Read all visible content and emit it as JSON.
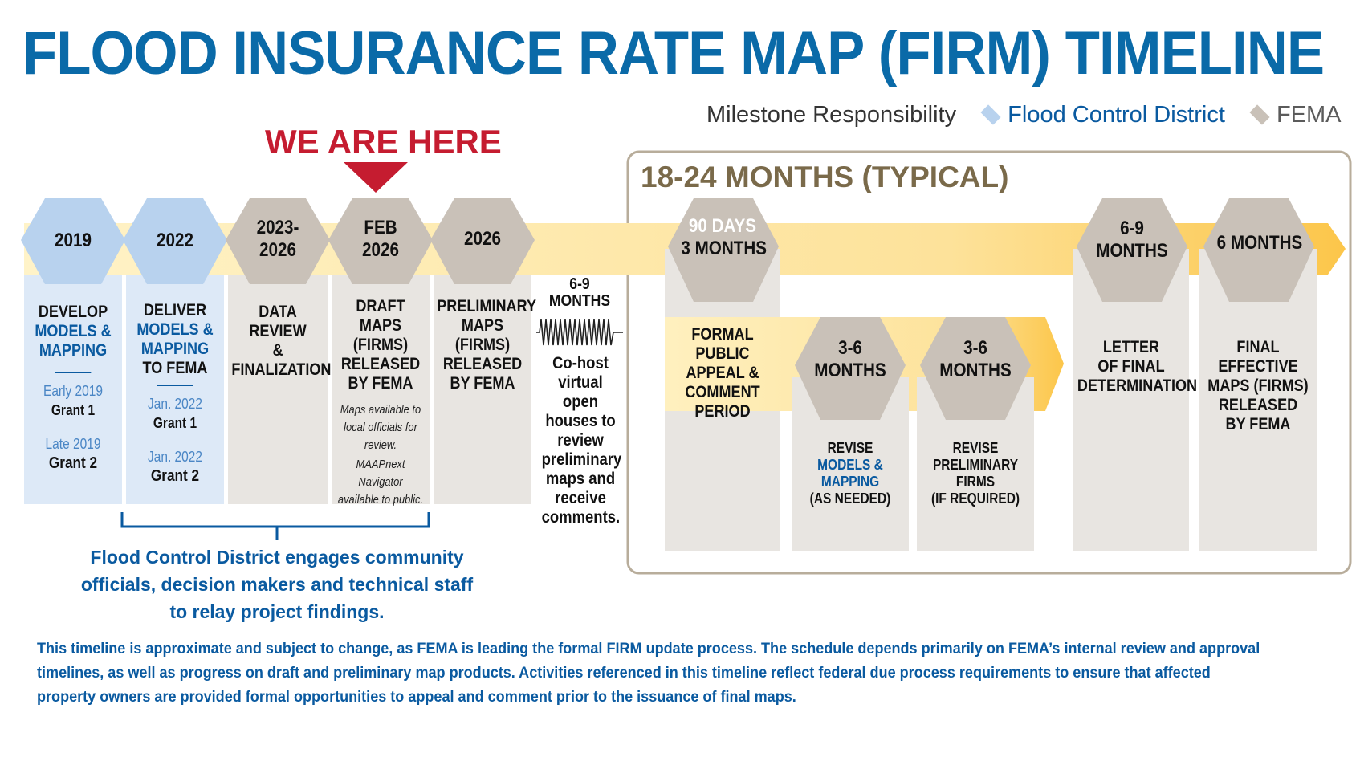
{
  "title": "FLOOD INSURANCE RATE MAP (FIRM) TIMELINE",
  "legend": {
    "label": "Milestone Responsibility",
    "items": [
      {
        "label": "Flood Control District",
        "color": "#b8d2ee"
      },
      {
        "label": "FEMA",
        "color": "#c9c1b8"
      }
    ]
  },
  "we_are_here": "WE ARE HERE",
  "colors": {
    "blue": "#0a6aa8",
    "red": "#c51c30",
    "fcd_card": "#dde9f7",
    "fema_card": "#e8e5e1",
    "band": "#fde3a0",
    "period_border": "#b8ad9b"
  },
  "milestones": [
    {
      "date": "2019",
      "line1": "DEVELOP",
      "line2": "MODELS &",
      "line3": "MAPPING",
      "sub1": "Early 2019",
      "sub1b": "Grant 1",
      "sub2": "Late 2019",
      "sub2b": "Grant 2"
    },
    {
      "date": "2022",
      "line1": "DELIVER",
      "line2": "MODELS &",
      "line3": "MAPPING",
      "line4": "TO FEMA",
      "sub1": "Jan. 2022",
      "sub1b": "Grant 1",
      "sub2": "Jan. 2022",
      "sub2b": "Grant 2"
    },
    {
      "date_a": "2023-",
      "date_b": "2026",
      "line1": "DATA REVIEW",
      "line2": "&",
      "line3": "FINALIZATION"
    },
    {
      "date_a": "FEB",
      "date_b": "2026",
      "line1": "DRAFT",
      "line2": "MAPS (FIRMS)",
      "line3": "RELEASED",
      "line4": "BY FEMA",
      "note1": "Maps available to local officials for review.",
      "note2": "MAAPnext Navigator available to public."
    },
    {
      "date": "2026",
      "line1": "PRELIMINARY",
      "line2": "MAPS (FIRMS)",
      "line3": "RELEASED",
      "line4": "BY FEMA"
    }
  ],
  "gap": {
    "label_a": "6-9",
    "label_b": "MONTHS",
    "text": "Co-host virtual open houses to review preliminary maps and receive comments."
  },
  "period": {
    "label": "18-24 MONTHS (TYPICAL)",
    "items": [
      {
        "date_a": "90 DAYS",
        "date_b": "3 MONTHS",
        "line1": "FORMAL PUBLIC",
        "line2": "APPEAL &",
        "line3": "COMMENT",
        "line4": "PERIOD"
      },
      {
        "date_a": "3-6",
        "date_b": "MONTHS",
        "line1": "REVISE",
        "line2": "MODELS &",
        "line3": "MAPPING",
        "line4": "(AS NEEDED)"
      },
      {
        "date_a": "3-6",
        "date_b": "MONTHS",
        "line1": "REVISE",
        "line2": "PRELIMINARY",
        "line3": "FIRMS",
        "line4": "(IF REQUIRED)"
      },
      {
        "date_a": "6-9",
        "date_b": "MONTHS",
        "line1": "LETTER",
        "line2": "OF FINAL",
        "line3": "DETERMINATION"
      },
      {
        "date": "6 MONTHS",
        "line1": "FINAL EFFECTIVE",
        "line2": "MAPS (FIRMS)",
        "line3": "RELEASED",
        "line4": "BY FEMA"
      }
    ]
  },
  "engagement": "Flood Control District engages community officials, decision makers and technical staff to relay project findings.",
  "disclaimer": "This timeline is approximate and subject to change, as FEMA is leading the formal FIRM update process. The schedule depends primarily on FEMA’s internal review and approval timelines, as well as progress on draft and preliminary map products. Activities referenced in this timeline reflect federal due process requirements to ensure that affected property owners are provided formal opportunities to appeal and comment prior to the issuance of final maps."
}
